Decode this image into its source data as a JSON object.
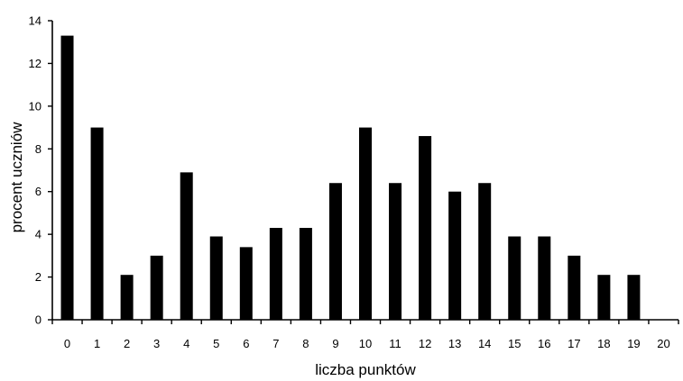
{
  "chart_data": {
    "type": "bar",
    "title": "",
    "xlabel": "liczba punktów",
    "ylabel": "procent uczniów",
    "categories": [
      "0",
      "1",
      "2",
      "3",
      "4",
      "5",
      "6",
      "7",
      "8",
      "9",
      "10",
      "11",
      "12",
      "13",
      "14",
      "15",
      "16",
      "17",
      "18",
      "19",
      "20"
    ],
    "values": [
      13.3,
      9.0,
      2.1,
      3.0,
      6.9,
      3.9,
      3.4,
      4.3,
      4.3,
      6.4,
      9.0,
      6.4,
      8.6,
      6.0,
      6.4,
      3.9,
      3.9,
      3.0,
      2.1,
      2.1,
      0
    ],
    "ylim": [
      0,
      14
    ],
    "yticks": [
      "0",
      "2",
      "4",
      "6",
      "8",
      "10",
      "12",
      "14"
    ],
    "grid": false,
    "legend": "none",
    "bar_color": "#000000"
  }
}
